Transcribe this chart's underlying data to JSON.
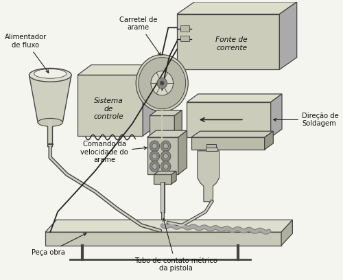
{
  "bg_color": "#f5f5f0",
  "fig_width": 5.0,
  "fig_height": 4.08,
  "dpi": 100,
  "labels": {
    "alimentador": "Alimentador\nde fluxo",
    "carretel": "Carretel de\narame",
    "fonte": "Fonte de\ncorrente",
    "sistema": "Sistema\nde\ncontrole",
    "direcao": "Direção de\nSoldagem",
    "comando": "Comando da\nvelocidade do\narame",
    "peca": "Peça obra",
    "tubo": "Tubo de contato métrico\nda pistola"
  },
  "box_color_front": "#ccccbb",
  "box_color_top": "#ddddcc",
  "box_color_right": "#aaaaaa",
  "box_edge": "#444444",
  "line_color": "#222222",
  "text_color": "#111111",
  "font_size": 7.2
}
